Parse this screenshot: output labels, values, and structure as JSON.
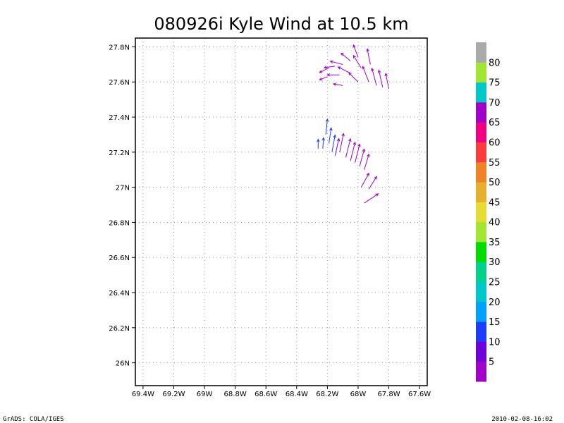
{
  "chart_data": {
    "type": "vector",
    "title": "080926i Kyle Wind at 10.5 km",
    "x_ticks": [
      "69.4W",
      "69.2W",
      "69W",
      "68.8W",
      "68.6W",
      "68.4W",
      "68.2W",
      "68W",
      "67.8W",
      "67.6W"
    ],
    "y_ticks": [
      "27.8N",
      "27.6N",
      "27.4N",
      "27.2N",
      "27N",
      "26.8N",
      "26.6N",
      "26.4N",
      "26.2N",
      "26N"
    ],
    "xlim": [
      -69.45,
      -67.55
    ],
    "ylim": [
      25.87,
      27.85
    ],
    "grid": true,
    "colorbar": {
      "labels": [
        "5",
        "10",
        "15",
        "20",
        "25",
        "30",
        "35",
        "40",
        "45",
        "50",
        "55",
        "60",
        "65",
        "70",
        "75",
        "80"
      ],
      "colors": [
        "#a000c8",
        "#6e00dc",
        "#1e3cff",
        "#00a0ff",
        "#00c8c8",
        "#00d28c",
        "#00dc00",
        "#a0e632",
        "#e6dc32",
        "#e6af2d",
        "#f08228",
        "#fa3c3c",
        "#f00082",
        "#a000c8",
        "#00c8c8",
        "#a0e632",
        "#aaaaaa"
      ]
    },
    "vectors_legend": "wind arrows; color indicates speed",
    "vectors": [
      {
        "lon": -68.19,
        "lat": 27.68,
        "u": -0.6,
        "v": -0.3,
        "c": "#a000c8"
      },
      {
        "lon": -68.15,
        "lat": 27.69,
        "u": -0.7,
        "v": -0.1,
        "c": "#a000c8"
      },
      {
        "lon": -68.1,
        "lat": 27.7,
        "u": -0.8,
        "v": 0.2,
        "c": "#a000c8"
      },
      {
        "lon": -68.05,
        "lat": 27.72,
        "u": -0.6,
        "v": 0.5,
        "c": "#a000c8"
      },
      {
        "lon": -68.0,
        "lat": 27.74,
        "u": -0.3,
        "v": 0.8,
        "c": "#a000c8"
      },
      {
        "lon": -68.2,
        "lat": 27.63,
        "u": -0.5,
        "v": -0.2,
        "c": "#a000c8"
      },
      {
        "lon": -68.12,
        "lat": 27.64,
        "u": -0.8,
        "v": 0.0,
        "c": "#a000c8"
      },
      {
        "lon": -68.05,
        "lat": 27.65,
        "u": -0.8,
        "v": 0.4,
        "c": "#a000c8"
      },
      {
        "lon": -67.98,
        "lat": 27.68,
        "u": -0.5,
        "v": 0.8,
        "c": "#a000c8"
      },
      {
        "lon": -67.92,
        "lat": 27.7,
        "u": -0.2,
        "v": 1.0,
        "c": "#a000c8"
      },
      {
        "lon": -68.1,
        "lat": 27.58,
        "u": -0.6,
        "v": 0.1,
        "c": "#a000c8"
      },
      {
        "lon": -68.0,
        "lat": 27.6,
        "u": -0.6,
        "v": 0.6,
        "c": "#a000c8"
      },
      {
        "lon": -67.93,
        "lat": 27.6,
        "u": -0.4,
        "v": 1.0,
        "c": "#a000c8"
      },
      {
        "lon": -67.88,
        "lat": 27.58,
        "u": -0.3,
        "v": 1.1,
        "c": "#a000c8"
      },
      {
        "lon": -67.84,
        "lat": 27.57,
        "u": -0.25,
        "v": 1.1,
        "c": "#a000c8"
      },
      {
        "lon": -67.8,
        "lat": 27.56,
        "u": -0.2,
        "v": 1.0,
        "c": "#a000c8"
      },
      {
        "lon": -68.26,
        "lat": 27.22,
        "u": 0.0,
        "v": 0.6,
        "c": "#1e3cff"
      },
      {
        "lon": -68.23,
        "lat": 27.22,
        "u": 0.05,
        "v": 0.7,
        "c": "#1e3cff"
      },
      {
        "lon": -68.21,
        "lat": 27.3,
        "u": 0.1,
        "v": 1.0,
        "c": "#1e3cff"
      },
      {
        "lon": -68.19,
        "lat": 27.25,
        "u": 0.15,
        "v": 1.0,
        "c": "#1e3cff"
      },
      {
        "lon": -68.17,
        "lat": 27.2,
        "u": 0.2,
        "v": 1.1,
        "c": "#1e3cff"
      },
      {
        "lon": -68.15,
        "lat": 27.18,
        "u": 0.25,
        "v": 1.1,
        "c": "#6e00dc"
      },
      {
        "lon": -68.12,
        "lat": 27.2,
        "u": 0.25,
        "v": 1.2,
        "c": "#a000c8"
      },
      {
        "lon": -68.08,
        "lat": 27.17,
        "u": 0.3,
        "v": 1.2,
        "c": "#a000c8"
      },
      {
        "lon": -68.05,
        "lat": 27.15,
        "u": 0.3,
        "v": 1.2,
        "c": "#a000c8"
      },
      {
        "lon": -68.02,
        "lat": 27.14,
        "u": 0.3,
        "v": 1.2,
        "c": "#a000c8"
      },
      {
        "lon": -67.99,
        "lat": 27.12,
        "u": 0.3,
        "v": 1.1,
        "c": "#a000c8"
      },
      {
        "lon": -67.96,
        "lat": 27.1,
        "u": 0.3,
        "v": 1.0,
        "c": "#a000c8"
      },
      {
        "lon": -67.98,
        "lat": 27.0,
        "u": 0.5,
        "v": 0.9,
        "c": "#a000c8"
      },
      {
        "lon": -67.93,
        "lat": 26.99,
        "u": 0.5,
        "v": 0.8,
        "c": "#a000c8"
      },
      {
        "lon": -67.96,
        "lat": 26.91,
        "u": 0.9,
        "v": 0.6,
        "c": "#a000c8"
      }
    ]
  },
  "footer": {
    "left": "GrADS: COLA/IGES",
    "right": "2010-02-08-16:02"
  }
}
